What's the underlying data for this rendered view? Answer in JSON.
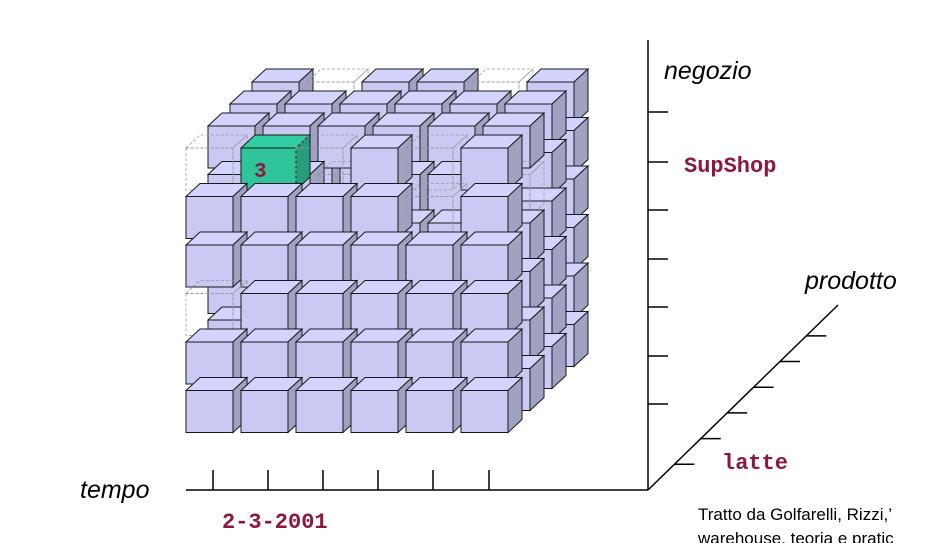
{
  "cube": {
    "dimensions": {
      "vertical": {
        "name": "negozio",
        "value": "SupShop"
      },
      "depth": {
        "name": "prodotto",
        "value": "latte"
      },
      "horizontal": {
        "name": "tempo",
        "value": "2-3-2001"
      }
    },
    "highlighted_cell": {
      "value": "3",
      "color": "#2fc49a"
    },
    "cell_color": "#c9c9f3",
    "label_color": "#8b1a3a"
  },
  "credit": {
    "line1": "Tratto da Golfarelli, Rizzi,’",
    "line2": "warehouse, teoria e pratic"
  }
}
